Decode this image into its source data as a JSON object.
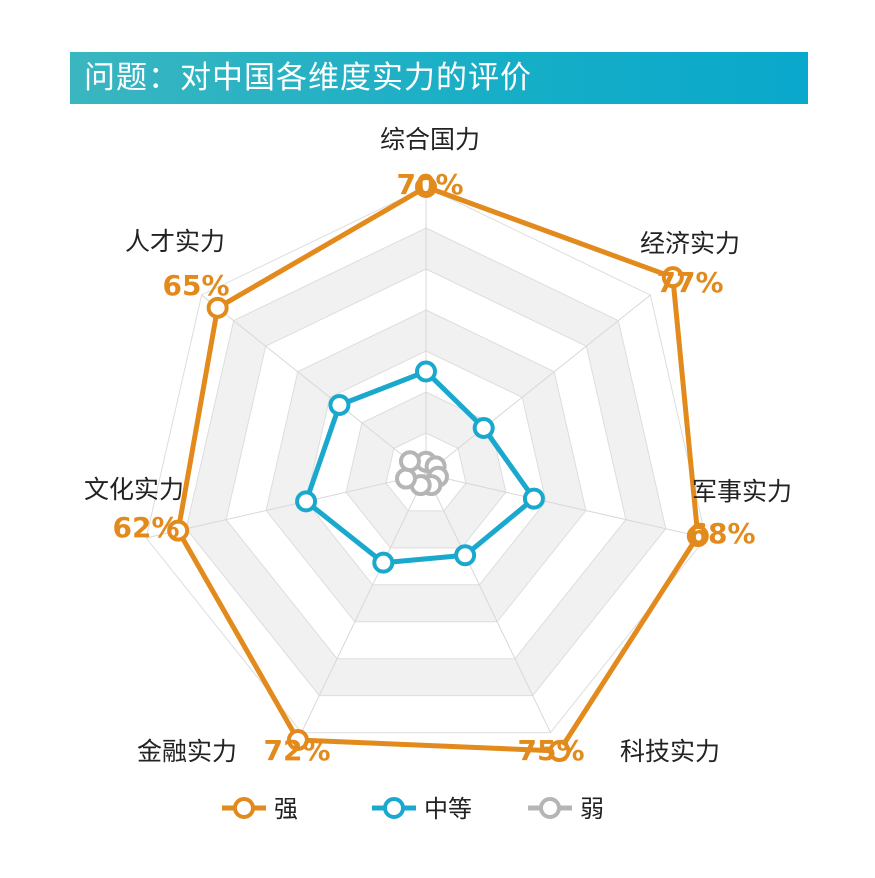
{
  "title": "问题：对中国各维度实力的评价",
  "chart_data": {
    "type": "radar",
    "title": "问题：对中国各维度实力的评价",
    "axes": [
      "综合国力",
      "经济实力",
      "军事实力",
      "科技实力",
      "金融实力",
      "文化实力",
      "人才实力"
    ],
    "series": [
      {
        "name": "强",
        "color": "#e28a1c",
        "values": [
          70,
          77,
          68,
          75,
          72,
          62,
          65
        ],
        "value_labels": [
          "70%",
          "77%",
          "68%",
          "75%",
          "72%",
          "62%",
          "65%"
        ]
      },
      {
        "name": "中等",
        "color": "#1aa9cd",
        "values": [
          25,
          18,
          27,
          22,
          24,
          30,
          27
        ]
      },
      {
        "name": "弱",
        "color": "#b5b5b5",
        "values": [
          3,
          3,
          3,
          3,
          3,
          5,
          5
        ]
      }
    ],
    "range": [
      0,
      100
    ],
    "grid": true,
    "legend_position": "bottom"
  }
}
